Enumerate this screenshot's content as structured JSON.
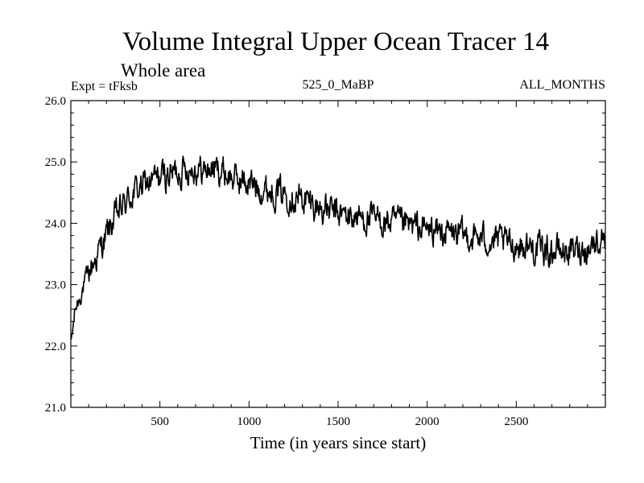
{
  "chart_data": {
    "type": "line",
    "title": "Volume Integral Upper Ocean Tracer 14",
    "subtitle": "Whole area",
    "experiment_label": "Expt = tFksb",
    "period_label": "525_0_MaBP",
    "months_label": "ALL_MONTHS",
    "xlabel": "Time (in years since start)",
    "ylabel": "",
    "xlim": [
      0,
      3000
    ],
    "ylim": [
      21.0,
      26.0
    ],
    "x_ticks": [
      500,
      1000,
      1500,
      2000,
      2500
    ],
    "x_tick_labels": [
      "500",
      "1000",
      "1500",
      "2000",
      "2500"
    ],
    "y_ticks": [
      21.0,
      22.0,
      23.0,
      24.0,
      25.0,
      26.0
    ],
    "y_tick_labels": [
      "21.0",
      "22.0",
      "23.0",
      "24.0",
      "25.0",
      "26.0"
    ],
    "line_color": "#000000",
    "series": [
      {
        "name": "Tracer 14",
        "x": [
          0,
          25,
          50,
          75,
          100,
          150,
          200,
          250,
          300,
          350,
          400,
          450,
          500,
          550,
          600,
          650,
          700,
          750,
          800,
          850,
          900,
          950,
          1000,
          1100,
          1200,
          1300,
          1400,
          1500,
          1600,
          1700,
          1800,
          1900,
          2000,
          2100,
          2200,
          2300,
          2400,
          2500,
          2600,
          2700,
          2800,
          2900,
          3000
        ],
        "values": [
          22.0,
          22.6,
          22.8,
          23.0,
          23.2,
          23.5,
          23.8,
          24.1,
          24.3,
          24.5,
          24.6,
          24.7,
          24.75,
          24.8,
          24.85,
          24.9,
          24.9,
          24.85,
          24.9,
          24.85,
          24.75,
          24.7,
          24.65,
          24.55,
          24.5,
          24.4,
          24.25,
          24.15,
          24.1,
          24.05,
          24.0,
          23.95,
          23.9,
          23.85,
          23.8,
          23.75,
          23.7,
          23.65,
          23.6,
          23.55,
          23.55,
          23.6,
          23.8
        ]
      }
    ]
  }
}
